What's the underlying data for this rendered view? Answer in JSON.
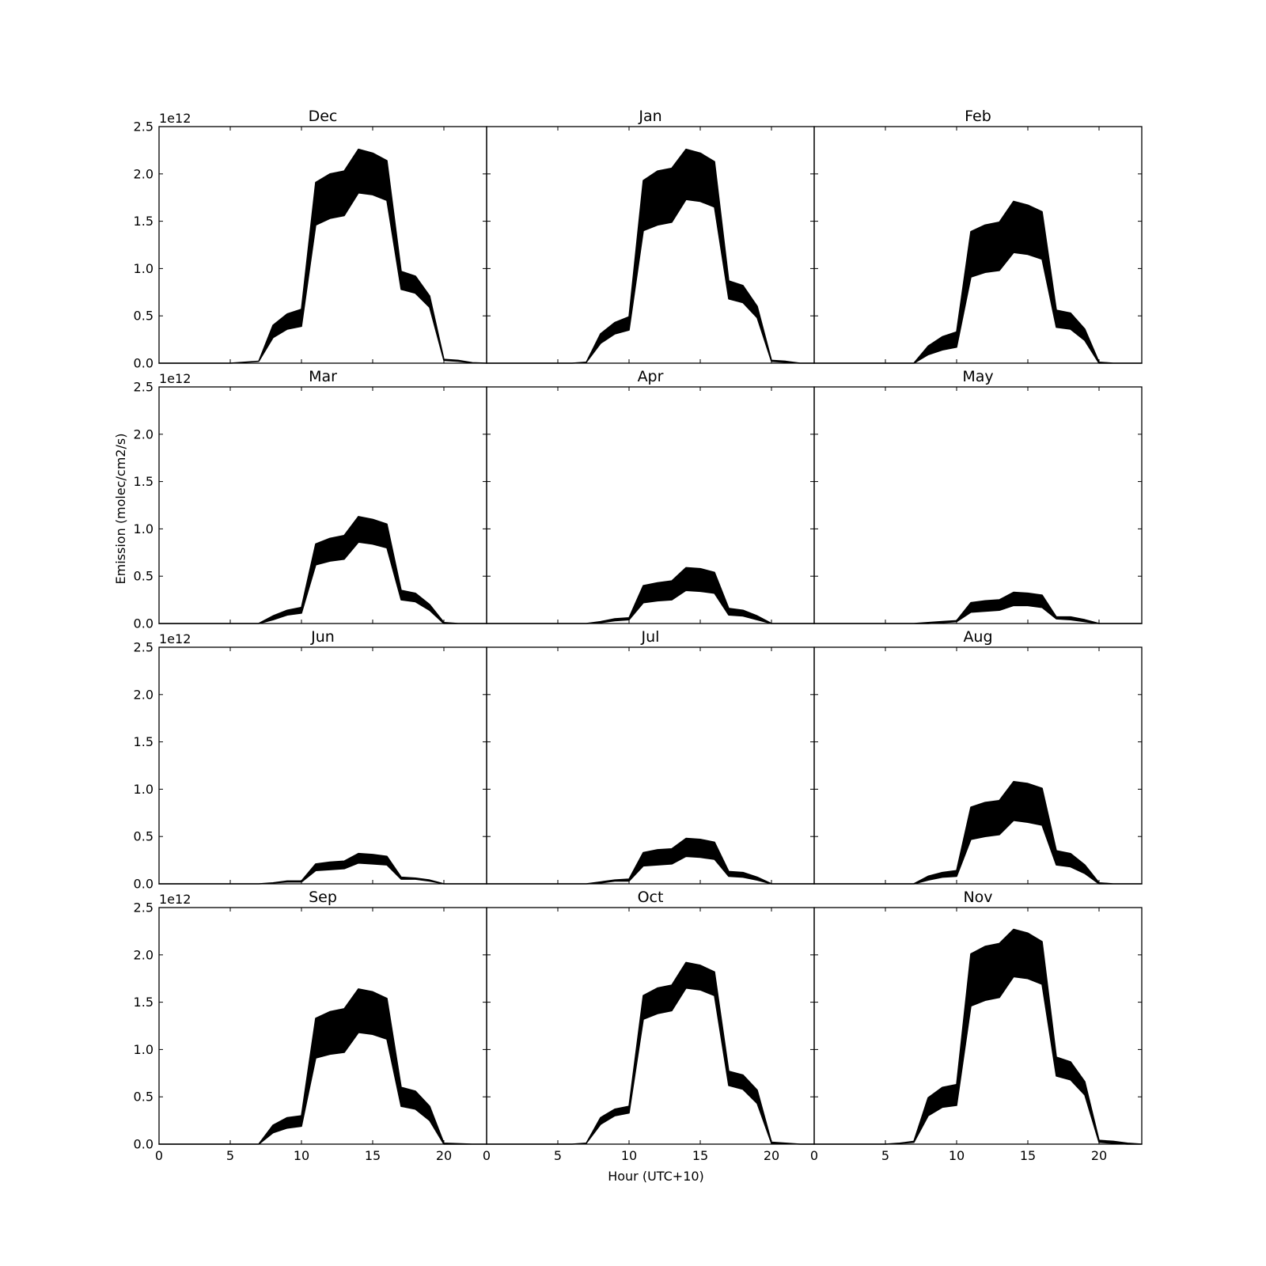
{
  "colors": {
    "band": "#000000",
    "frame": "#000000",
    "background": "#ffffff"
  },
  "chart_data": {
    "type": "area",
    "layout": {
      "rows": 4,
      "cols": 3,
      "sharex": true,
      "sharey": true
    },
    "xlabel": "Hour (UTC+10)",
    "ylabel": "Emission (molec/cm2/s)",
    "xlim": [
      0,
      23
    ],
    "ylim": [
      0,
      2.5
    ],
    "y_offset_label": "1e12",
    "y_scale_factor": 1000000000000.0,
    "xticks": [
      0,
      5,
      10,
      15,
      20
    ],
    "yticks": [
      0.0,
      0.5,
      1.0,
      1.5,
      2.0,
      2.5
    ],
    "x": [
      0,
      1,
      2,
      3,
      4,
      5,
      6,
      7,
      8,
      9,
      10,
      11,
      12,
      13,
      14,
      15,
      16,
      17,
      18,
      19,
      20,
      21,
      22,
      23
    ],
    "panels": [
      {
        "title": "Dec",
        "lower": [
          0,
          0,
          0,
          0,
          0,
          0,
          0.01,
          0.02,
          0.27,
          0.36,
          0.39,
          1.46,
          1.53,
          1.56,
          1.8,
          1.78,
          1.72,
          0.78,
          0.74,
          0.59,
          0.03,
          0.02,
          0.005,
          0
        ],
        "upper": [
          0,
          0,
          0,
          0,
          0,
          0,
          0.01,
          0.02,
          0.4,
          0.52,
          0.57,
          1.91,
          2.0,
          2.03,
          2.26,
          2.22,
          2.14,
          0.97,
          0.92,
          0.71,
          0.04,
          0.03,
          0.005,
          0
        ]
      },
      {
        "title": "Jan",
        "lower": [
          0,
          0,
          0,
          0,
          0,
          0,
          0,
          0.01,
          0.21,
          0.31,
          0.35,
          1.4,
          1.46,
          1.49,
          1.73,
          1.71,
          1.65,
          0.68,
          0.64,
          0.48,
          0.02,
          0.01,
          0,
          0
        ],
        "upper": [
          0,
          0,
          0,
          0,
          0,
          0,
          0,
          0.01,
          0.31,
          0.43,
          0.49,
          1.93,
          2.03,
          2.06,
          2.26,
          2.22,
          2.13,
          0.87,
          0.82,
          0.6,
          0.03,
          0.02,
          0,
          0
        ]
      },
      {
        "title": "Feb",
        "lower": [
          0,
          0,
          0,
          0,
          0,
          0,
          0,
          0,
          0.09,
          0.14,
          0.17,
          0.91,
          0.96,
          0.98,
          1.17,
          1.15,
          1.1,
          0.38,
          0.36,
          0.24,
          0,
          0,
          0,
          0
        ],
        "upper": [
          0,
          0,
          0,
          0,
          0,
          0,
          0,
          0,
          0.18,
          0.28,
          0.33,
          1.39,
          1.46,
          1.49,
          1.71,
          1.67,
          1.6,
          0.56,
          0.53,
          0.36,
          0.01,
          0,
          0,
          0
        ]
      },
      {
        "title": "Mar",
        "lower": [
          0,
          0,
          0,
          0,
          0,
          0,
          0,
          0,
          0.04,
          0.09,
          0.11,
          0.62,
          0.66,
          0.68,
          0.86,
          0.84,
          0.8,
          0.25,
          0.23,
          0.14,
          0,
          0,
          0,
          0
        ],
        "upper": [
          0,
          0,
          0,
          0,
          0,
          0,
          0,
          0,
          0.08,
          0.14,
          0.17,
          0.84,
          0.9,
          0.93,
          1.13,
          1.1,
          1.05,
          0.35,
          0.32,
          0.2,
          0.01,
          0,
          0,
          0
        ]
      },
      {
        "title": "Apr",
        "lower": [
          0,
          0,
          0,
          0,
          0,
          0,
          0,
          0,
          0.01,
          0.03,
          0.04,
          0.22,
          0.24,
          0.25,
          0.35,
          0.34,
          0.32,
          0.09,
          0.08,
          0.04,
          0,
          0,
          0,
          0
        ],
        "upper": [
          0,
          0,
          0,
          0,
          0,
          0,
          0,
          0,
          0.02,
          0.05,
          0.06,
          0.4,
          0.43,
          0.45,
          0.59,
          0.58,
          0.54,
          0.16,
          0.14,
          0.08,
          0,
          0,
          0,
          0
        ]
      },
      {
        "title": "May",
        "lower": [
          0,
          0,
          0,
          0,
          0,
          0,
          0,
          0,
          0,
          0.01,
          0.02,
          0.12,
          0.13,
          0.14,
          0.19,
          0.19,
          0.17,
          0.05,
          0.04,
          0.02,
          0,
          0,
          0,
          0
        ],
        "upper": [
          0,
          0,
          0,
          0,
          0,
          0,
          0,
          0,
          0.01,
          0.02,
          0.03,
          0.22,
          0.24,
          0.25,
          0.33,
          0.32,
          0.3,
          0.07,
          0.07,
          0.04,
          0,
          0,
          0,
          0
        ]
      },
      {
        "title": "Jun",
        "lower": [
          0,
          0,
          0,
          0,
          0,
          0,
          0,
          0,
          0.01,
          0.02,
          0.02,
          0.14,
          0.15,
          0.16,
          0.22,
          0.21,
          0.2,
          0.05,
          0.05,
          0.03,
          0,
          0,
          0,
          0
        ],
        "upper": [
          0,
          0,
          0,
          0,
          0,
          0,
          0,
          0,
          0.01,
          0.03,
          0.03,
          0.21,
          0.23,
          0.24,
          0.32,
          0.31,
          0.29,
          0.07,
          0.06,
          0.04,
          0,
          0,
          0,
          0
        ]
      },
      {
        "title": "Jul",
        "lower": [
          0,
          0,
          0,
          0,
          0,
          0,
          0,
          0,
          0.01,
          0.03,
          0.03,
          0.19,
          0.2,
          0.21,
          0.29,
          0.28,
          0.26,
          0.08,
          0.07,
          0.04,
          0,
          0,
          0,
          0
        ],
        "upper": [
          0,
          0,
          0,
          0,
          0,
          0,
          0,
          0,
          0.02,
          0.04,
          0.05,
          0.33,
          0.36,
          0.37,
          0.48,
          0.47,
          0.44,
          0.13,
          0.12,
          0.07,
          0,
          0,
          0,
          0
        ]
      },
      {
        "title": "Aug",
        "lower": [
          0,
          0,
          0,
          0,
          0,
          0,
          0,
          0,
          0.04,
          0.07,
          0.08,
          0.47,
          0.5,
          0.52,
          0.67,
          0.65,
          0.62,
          0.2,
          0.18,
          0.11,
          0,
          0,
          0,
          0
        ],
        "upper": [
          0,
          0,
          0,
          0,
          0,
          0,
          0,
          0,
          0.08,
          0.12,
          0.14,
          0.81,
          0.86,
          0.88,
          1.08,
          1.06,
          1.01,
          0.35,
          0.32,
          0.2,
          0.01,
          0,
          0,
          0
        ]
      },
      {
        "title": "Sep",
        "lower": [
          0,
          0,
          0,
          0,
          0,
          0,
          0,
          0,
          0.12,
          0.17,
          0.19,
          0.91,
          0.95,
          0.97,
          1.18,
          1.16,
          1.11,
          0.4,
          0.37,
          0.25,
          0,
          0,
          0,
          0
        ],
        "upper": [
          0,
          0,
          0,
          0,
          0,
          0,
          0,
          0,
          0.2,
          0.28,
          0.3,
          1.33,
          1.4,
          1.43,
          1.64,
          1.61,
          1.54,
          0.6,
          0.56,
          0.4,
          0.01,
          0.005,
          0,
          0
        ]
      },
      {
        "title": "Oct",
        "lower": [
          0,
          0,
          0,
          0,
          0,
          0,
          0,
          0.01,
          0.21,
          0.3,
          0.33,
          1.32,
          1.38,
          1.41,
          1.65,
          1.63,
          1.57,
          0.62,
          0.58,
          0.43,
          0.01,
          0.01,
          0,
          0
        ],
        "upper": [
          0,
          0,
          0,
          0,
          0,
          0,
          0,
          0.01,
          0.28,
          0.37,
          0.4,
          1.57,
          1.65,
          1.68,
          1.92,
          1.89,
          1.82,
          0.77,
          0.73,
          0.57,
          0.02,
          0.01,
          0,
          0
        ]
      },
      {
        "title": "Nov",
        "lower": [
          0,
          0,
          0,
          0,
          0,
          0,
          0.01,
          0.02,
          0.3,
          0.39,
          0.41,
          1.46,
          1.52,
          1.55,
          1.77,
          1.75,
          1.69,
          0.72,
          0.68,
          0.52,
          0.02,
          0.01,
          0,
          0
        ],
        "upper": [
          0,
          0,
          0,
          0,
          0,
          0,
          0.01,
          0.03,
          0.49,
          0.6,
          0.63,
          2.01,
          2.09,
          2.12,
          2.27,
          2.23,
          2.14,
          0.92,
          0.87,
          0.66,
          0.04,
          0.03,
          0.01,
          0
        ]
      }
    ]
  }
}
